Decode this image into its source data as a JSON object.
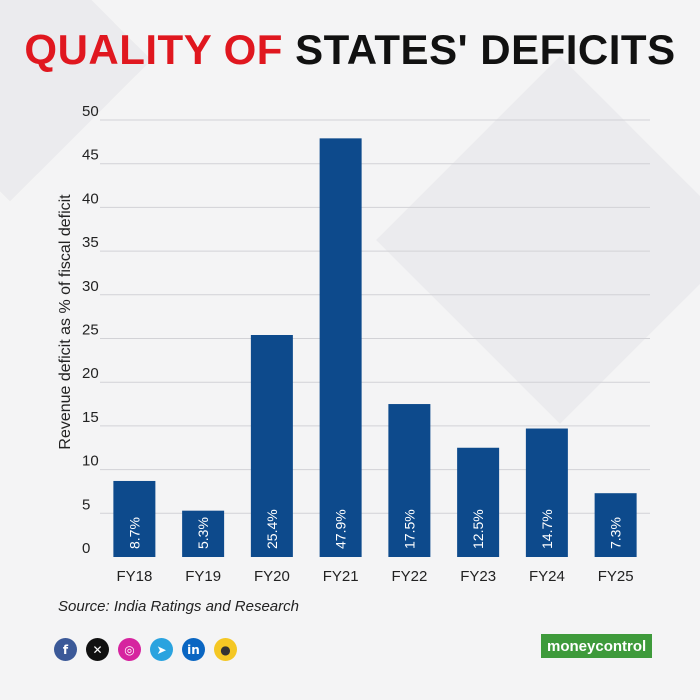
{
  "title": {
    "part1": "QUALITY OF",
    "part2": "STATES' DEFICITS"
  },
  "colors": {
    "title_accent": "#e0171f",
    "bar": "#0d4a8c",
    "background": "#f4f4f5"
  },
  "chart_data": {
    "type": "bar",
    "categories": [
      "FY18",
      "FY19",
      "FY20",
      "FY21",
      "FY22",
      "FY23",
      "FY24",
      "FY25"
    ],
    "values": [
      8.7,
      5.3,
      25.4,
      47.9,
      17.5,
      12.5,
      14.7,
      7.3
    ],
    "data_labels": [
      "8.7%",
      "5.3%",
      "25.4%",
      "47.9%",
      "17.5%",
      "12.5%",
      "14.7%",
      "7.3%"
    ],
    "ylabel": "Revenue deficit as % of fiscal deficit",
    "ylim": [
      0,
      50
    ],
    "yticks": [
      0,
      5,
      10,
      15,
      20,
      25,
      30,
      35,
      40,
      45,
      50
    ],
    "grid": true
  },
  "source": "Source: India Ratings and Research",
  "social_icons": [
    "facebook-icon",
    "x-icon",
    "instagram-icon",
    "telegram-icon",
    "linkedin-icon",
    "koo-icon"
  ],
  "logo": "moneycontrol"
}
